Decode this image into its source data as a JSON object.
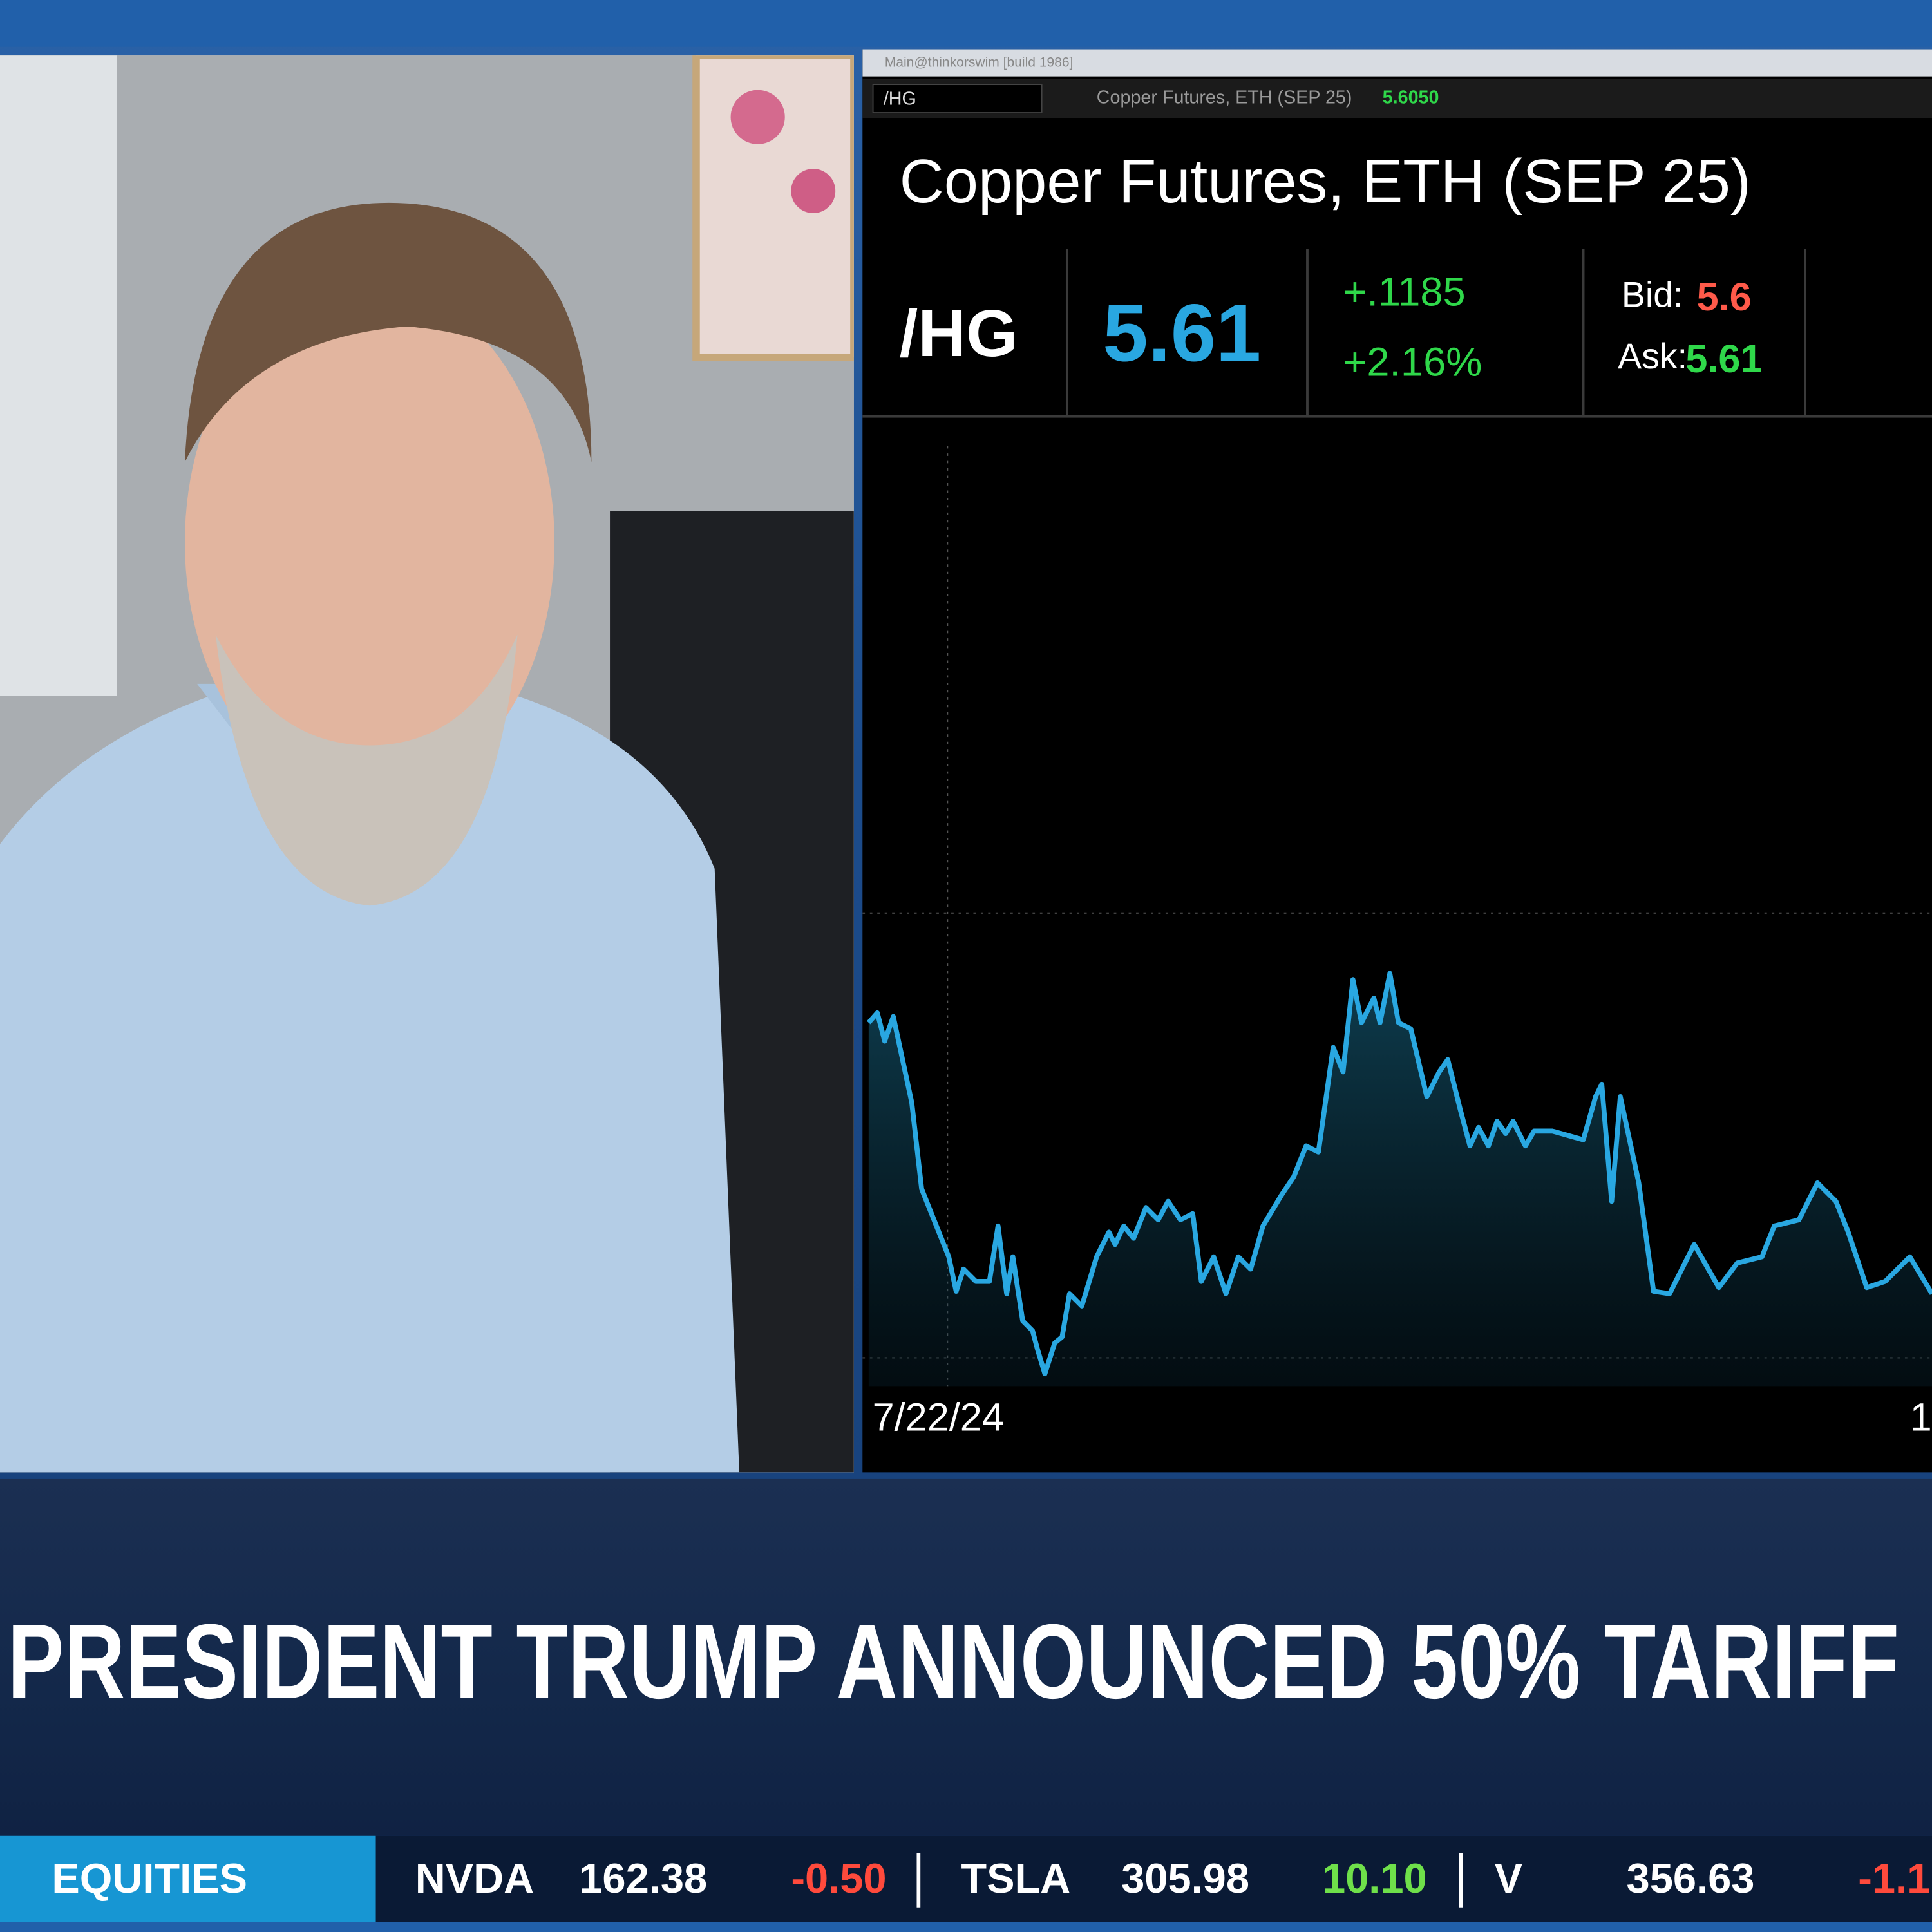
{
  "window": {
    "title": "Main@thinkorswim [build 1986]",
    "symbol_box": "/HG",
    "description": "Copper Futures, ETH (SEP 25)",
    "last": "5.6050"
  },
  "quote": {
    "title": "Copper Futures, ETH (SEP 25)",
    "symbol": "/HG",
    "last": "5.61",
    "change": "+.1185",
    "change_pct": "+2.16%",
    "bid_label": "Bid:",
    "bid": "5.6",
    "ask_label": "Ask:",
    "ask": "5.61"
  },
  "chart": {
    "date_labels": [
      "7/22/24",
      "1"
    ]
  },
  "headline": "PRESIDENT TRUMP ANNOUNCED 50% TARIFF",
  "ticker": {
    "label": "EQUITIES",
    "items": [
      {
        "symbol": "NVDA",
        "price": "162.38",
        "change": "-0.50"
      },
      {
        "symbol": "TSLA",
        "price": "305.98",
        "change": "10.10"
      },
      {
        "symbol": "V",
        "price": "356.63",
        "change": "-1.1"
      }
    ]
  }
}
